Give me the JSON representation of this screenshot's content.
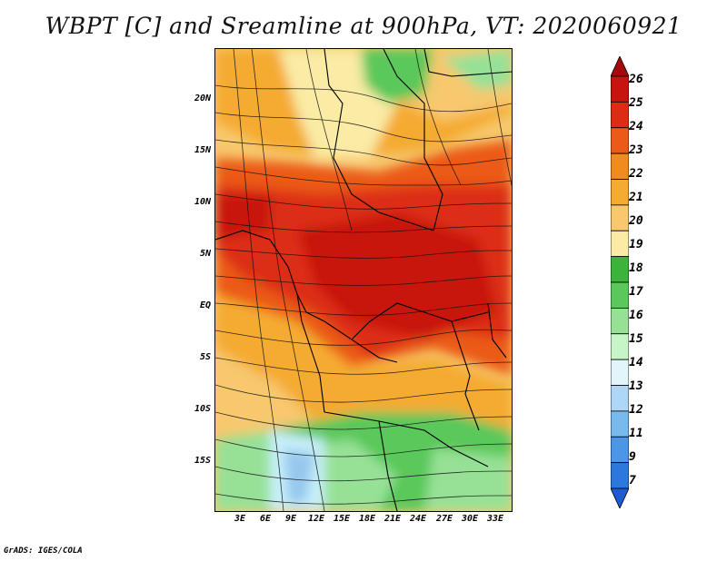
{
  "title": "WBPT [C] and Sreamline at 900hPa, VT: 2020060921",
  "credit": "GrADS: IGES/COLA",
  "lat_labels": [
    "20N",
    "15N",
    "10N",
    "5N",
    "EQ",
    "5S",
    "10S",
    "15S"
  ],
  "lon_labels": [
    "3E",
    "6E",
    "9E",
    "12E",
    "15E",
    "18E",
    "21E",
    "24E",
    "27E",
    "30E",
    "33E"
  ],
  "colorbar": {
    "labels": [
      "26",
      "25",
      "24",
      "23",
      "22",
      "21",
      "20",
      "19",
      "18",
      "17",
      "16",
      "15",
      "14",
      "13",
      "12",
      "11",
      "9",
      "7"
    ],
    "colors": [
      "#a50a0a",
      "#c8140f",
      "#dc2d14",
      "#eb5a19",
      "#f08c1e",
      "#f5aa32",
      "#f7c86e",
      "#faeba5",
      "#3cb43c",
      "#5ac85a",
      "#96e196",
      "#c8f5c8",
      "#e1f5fa",
      "#afd7f5",
      "#78b9ee",
      "#4b96e6",
      "#2d78dc",
      "#1e5ad2"
    ]
  },
  "map_colors": {
    "hot": "#c8140f",
    "warm": "#eb5a19",
    "orange": "#f5aa32",
    "yellow": "#faeba5",
    "green": "#5ac85a",
    "light_green": "#96e196",
    "pale_blue": "#c8f0fa",
    "blue": "#96c8ee"
  }
}
